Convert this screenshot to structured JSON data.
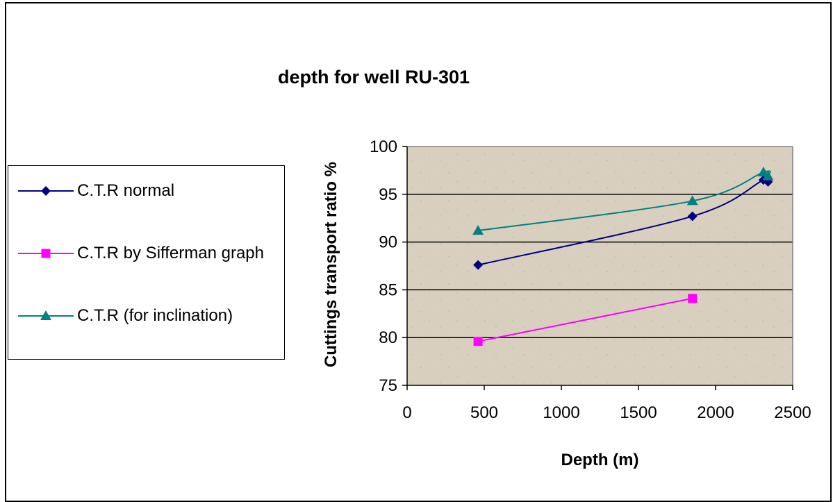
{
  "chart_data": {
    "type": "line",
    "title": "depth for well RU-301",
    "xlabel": "Depth (m)",
    "ylabel": "Cuttings transport ratio %",
    "xlim": [
      0,
      2500
    ],
    "ylim": [
      75,
      100
    ],
    "x_ticks": [
      "0",
      "500",
      "1000",
      "1500",
      "2000",
      "2500"
    ],
    "y_ticks": [
      "75",
      "80",
      "85",
      "90",
      "95",
      "100"
    ],
    "grid": "horizontal major gridlines",
    "legend_position": "left",
    "plot_background": "#d8cfbe",
    "series": [
      {
        "name": "C.T.R normal",
        "color": "#000080",
        "marker": "diamond",
        "x": [
          460,
          1850,
          2310,
          2340
        ],
        "y": [
          87.6,
          92.7,
          96.5,
          96.3
        ]
      },
      {
        "name": "C.T.R by Sifferman graph",
        "color": "#ff00ff",
        "marker": "square",
        "x": [
          460,
          1850
        ],
        "y": [
          79.6,
          84.1
        ]
      },
      {
        "name": "C.T.R (for inclination)",
        "color": "#008080",
        "marker": "triangle",
        "x": [
          460,
          1850,
          2310,
          2340
        ],
        "y": [
          91.2,
          94.3,
          97.3,
          96.9
        ]
      }
    ]
  }
}
